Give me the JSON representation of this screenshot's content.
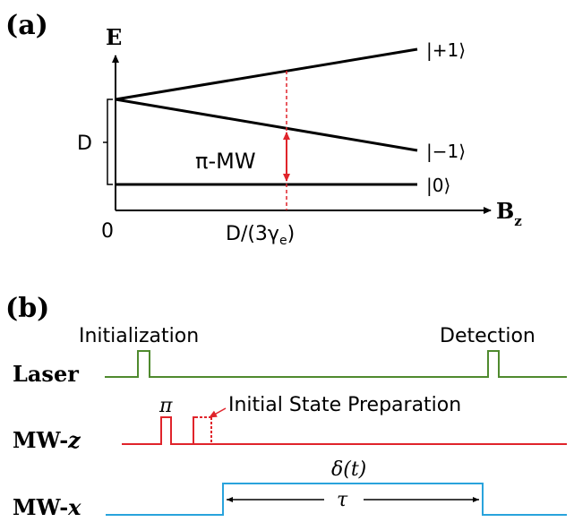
{
  "panel_a": {
    "label": "(a)",
    "y_axis": "E",
    "x_axis_main": "B",
    "x_axis_sub": "z",
    "origin": "0",
    "d_label": "D",
    "field_label_pre": "D/(3γ",
    "field_label_sub": "e",
    "field_label_post": ")",
    "transition_label": "π-MW",
    "states": {
      "plus_one": "|+1⟩",
      "minus_one": "|−1⟩",
      "zero": "|0⟩"
    },
    "colors": {
      "axes": "#000000",
      "transition": "#e0242b"
    }
  },
  "panel_b": {
    "label": "(b)",
    "channels": {
      "laser": {
        "label": "Laser",
        "color": "#4f8a2e"
      },
      "mw_z": {
        "label_main": "MW-",
        "label_var": "z",
        "color": "#e0242b"
      },
      "mw_x": {
        "label_main": "MW-",
        "label_var": "x",
        "color": "#29a3dc"
      }
    },
    "annotations": {
      "initialization": "Initialization",
      "detection": "Detection",
      "pi": "π",
      "initial_state_preparation": "Initial State Preparation",
      "delta_t": "δ(t)",
      "tau": "τ"
    }
  }
}
